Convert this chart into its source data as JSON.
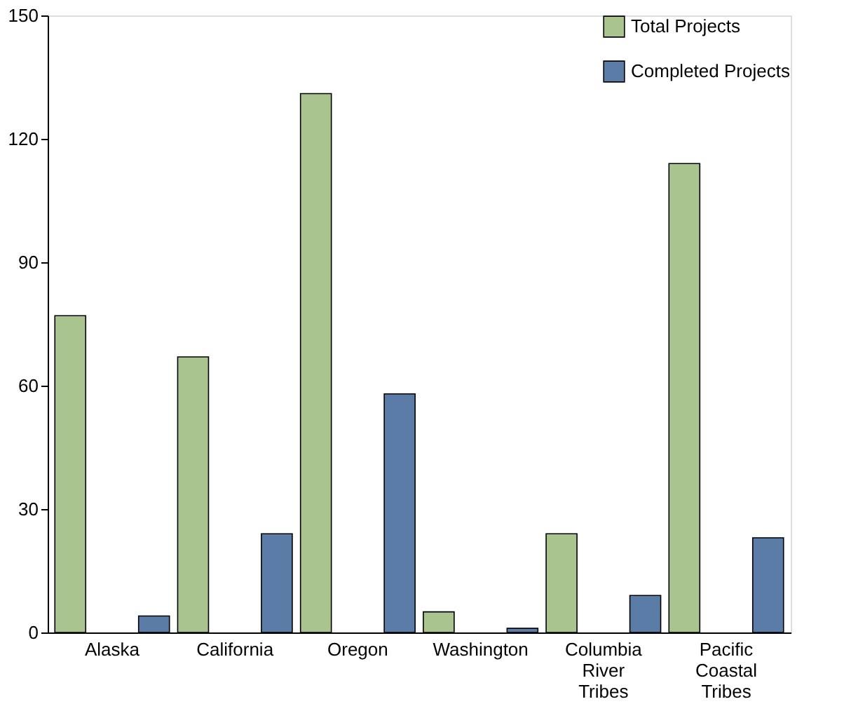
{
  "chart_data": {
    "type": "bar",
    "categories": [
      "Alaska",
      "California",
      "Oregon",
      "Washington",
      "Columbia River Tribes",
      "Pacific Coastal Tribes"
    ],
    "series": [
      {
        "name": "Total Projects",
        "color": "#a9c48e",
        "values": [
          77,
          67,
          131,
          5,
          24,
          114
        ]
      },
      {
        "name": "Completed Projects",
        "color": "#5a7ca6",
        "values": [
          4,
          24,
          58,
          1,
          9,
          23
        ]
      }
    ],
    "ylim": [
      0,
      150
    ],
    "yticks": [
      0,
      30,
      60,
      90,
      120,
      150
    ],
    "grid": false,
    "legend": "top right"
  }
}
